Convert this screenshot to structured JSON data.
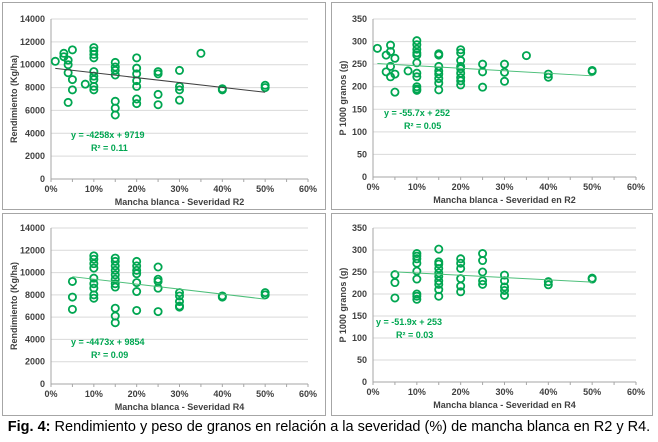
{
  "caption": {
    "prefix": "Fig. 4:",
    "text": " Rendimiento y peso de granos en relación a la severidad (%) de mancha blanca en R2 y R4."
  },
  "colors": {
    "marker": "#00a651",
    "trend_dark": "#404040",
    "trend_green": "#4dbf7a",
    "equation": "#00a651",
    "grid": "#d9d9d9",
    "axis": "#a6a6a6"
  },
  "chart_data": [
    {
      "id": "rend-r2",
      "type": "scatter",
      "title": "",
      "xlabel": "Mancha blanca - Severidad R2",
      "ylabel": "Rendimiento (Kg/ha)",
      "xlim": [
        0,
        0.6
      ],
      "ylim": [
        0,
        14000
      ],
      "xticks": [
        "0%",
        "10%",
        "20%",
        "30%",
        "40%",
        "50%",
        "60%"
      ],
      "yticks": [
        "0",
        "2000",
        "4000",
        "6000",
        "8000",
        "10000",
        "12000",
        "14000"
      ],
      "grid": true,
      "trendline": {
        "slope": -4258,
        "intercept": 9719,
        "x_range": [
          0.01,
          0.5
        ],
        "color": "trend_dark"
      },
      "equation": "y = -4258x + 9719",
      "r2": "R² = 0.11",
      "points": [
        [
          0.01,
          10300
        ],
        [
          0.03,
          11000
        ],
        [
          0.03,
          10700
        ],
        [
          0.04,
          10400
        ],
        [
          0.04,
          10000
        ],
        [
          0.04,
          9300
        ],
        [
          0.04,
          6700
        ],
        [
          0.05,
          11300
        ],
        [
          0.05,
          8700
        ],
        [
          0.05,
          7800
        ],
        [
          0.08,
          8300
        ],
        [
          0.1,
          11500
        ],
        [
          0.1,
          11200
        ],
        [
          0.1,
          10900
        ],
        [
          0.1,
          10600
        ],
        [
          0.1,
          9400
        ],
        [
          0.1,
          9000
        ],
        [
          0.1,
          8700
        ],
        [
          0.1,
          8100
        ],
        [
          0.1,
          7800
        ],
        [
          0.15,
          10200
        ],
        [
          0.15,
          9800
        ],
        [
          0.15,
          9500
        ],
        [
          0.15,
          9100
        ],
        [
          0.15,
          6800
        ],
        [
          0.15,
          6200
        ],
        [
          0.15,
          5600
        ],
        [
          0.2,
          10600
        ],
        [
          0.2,
          9700
        ],
        [
          0.2,
          9200
        ],
        [
          0.2,
          8600
        ],
        [
          0.2,
          8100
        ],
        [
          0.2,
          7000
        ],
        [
          0.2,
          6600
        ],
        [
          0.25,
          9400
        ],
        [
          0.25,
          9200
        ],
        [
          0.25,
          7400
        ],
        [
          0.25,
          6500
        ],
        [
          0.3,
          9500
        ],
        [
          0.3,
          8100
        ],
        [
          0.3,
          7800
        ],
        [
          0.3,
          6900
        ],
        [
          0.35,
          11000
        ],
        [
          0.4,
          7900
        ],
        [
          0.4,
          7800
        ],
        [
          0.5,
          8200
        ],
        [
          0.5,
          8000
        ]
      ]
    },
    {
      "id": "p1000-r2",
      "type": "scatter",
      "title": "",
      "xlabel": "Mancha blanca - Severidad en R2",
      "ylabel": "P 1000 granos (g)",
      "xlim": [
        0,
        0.6
      ],
      "ylim": [
        0,
        350
      ],
      "xticks": [
        "0%",
        "10%",
        "20%",
        "30%",
        "40%",
        "50%",
        "60%"
      ],
      "yticks": [
        "0",
        "50",
        "100",
        "150",
        "200",
        "250",
        "300",
        "350"
      ],
      "grid": true,
      "trendline": {
        "slope": -55.7,
        "intercept": 252,
        "x_range": [
          0.01,
          0.5
        ],
        "color": "trend_green"
      },
      "equation": "y = -55.7x + 252",
      "r2": "R² = 0.05",
      "points": [
        [
          0.01,
          285
        ],
        [
          0.03,
          270
        ],
        [
          0.03,
          233
        ],
        [
          0.04,
          292
        ],
        [
          0.04,
          278
        ],
        [
          0.04,
          245
        ],
        [
          0.04,
          222
        ],
        [
          0.05,
          263
        ],
        [
          0.05,
          228
        ],
        [
          0.05,
          188
        ],
        [
          0.08,
          235
        ],
        [
          0.1,
          302
        ],
        [
          0.1,
          293
        ],
        [
          0.1,
          283
        ],
        [
          0.1,
          275
        ],
        [
          0.1,
          270
        ],
        [
          0.1,
          253
        ],
        [
          0.1,
          230
        ],
        [
          0.1,
          222
        ],
        [
          0.1,
          200
        ],
        [
          0.1,
          195
        ],
        [
          0.1,
          192
        ],
        [
          0.15,
          273
        ],
        [
          0.15,
          270
        ],
        [
          0.15,
          245
        ],
        [
          0.15,
          235
        ],
        [
          0.15,
          228
        ],
        [
          0.15,
          218
        ],
        [
          0.15,
          208
        ],
        [
          0.15,
          193
        ],
        [
          0.2,
          282
        ],
        [
          0.2,
          275
        ],
        [
          0.2,
          258
        ],
        [
          0.2,
          245
        ],
        [
          0.2,
          240
        ],
        [
          0.2,
          230
        ],
        [
          0.2,
          220
        ],
        [
          0.2,
          213
        ],
        [
          0.2,
          204
        ],
        [
          0.25,
          250
        ],
        [
          0.25,
          233
        ],
        [
          0.25,
          199
        ],
        [
          0.3,
          250
        ],
        [
          0.3,
          232
        ],
        [
          0.3,
          212
        ],
        [
          0.35,
          269
        ],
        [
          0.4,
          228
        ],
        [
          0.4,
          221
        ],
        [
          0.5,
          236
        ],
        [
          0.5,
          234
        ]
      ]
    },
    {
      "id": "rend-r4",
      "type": "scatter",
      "title": "",
      "xlabel": "Mancha blanca - Severidad R4",
      "ylabel": "Rendimiento (Kg/ha)",
      "xlim": [
        0,
        0.6
      ],
      "ylim": [
        0,
        14000
      ],
      "xticks": [
        "0%",
        "10%",
        "20%",
        "30%",
        "40%",
        "50%",
        "60%"
      ],
      "yticks": [
        "0",
        "2000",
        "4000",
        "6000",
        "8000",
        "10000",
        "12000",
        "14000"
      ],
      "grid": true,
      "trendline": {
        "slope": -4473,
        "intercept": 9854,
        "x_range": [
          0.05,
          0.5
        ],
        "color": "trend_green"
      },
      "equation": "y = -4473x + 9854",
      "r2": "R² = 0.09",
      "points": [
        [
          0.05,
          9200
        ],
        [
          0.05,
          7800
        ],
        [
          0.05,
          6700
        ],
        [
          0.1,
          11500
        ],
        [
          0.1,
          11200
        ],
        [
          0.1,
          10800
        ],
        [
          0.1,
          10400
        ],
        [
          0.1,
          9500
        ],
        [
          0.1,
          9000
        ],
        [
          0.1,
          8600
        ],
        [
          0.1,
          8000
        ],
        [
          0.1,
          7700
        ],
        [
          0.15,
          11300
        ],
        [
          0.15,
          11000
        ],
        [
          0.15,
          10600
        ],
        [
          0.15,
          10200
        ],
        [
          0.15,
          9800
        ],
        [
          0.15,
          9400
        ],
        [
          0.15,
          9000
        ],
        [
          0.15,
          8700
        ],
        [
          0.15,
          6800
        ],
        [
          0.15,
          6100
        ],
        [
          0.15,
          5500
        ],
        [
          0.2,
          11000
        ],
        [
          0.2,
          10600
        ],
        [
          0.2,
          10200
        ],
        [
          0.2,
          9900
        ],
        [
          0.2,
          9100
        ],
        [
          0.2,
          8300
        ],
        [
          0.2,
          6600
        ],
        [
          0.25,
          10500
        ],
        [
          0.25,
          9400
        ],
        [
          0.25,
          9200
        ],
        [
          0.25,
          8600
        ],
        [
          0.25,
          6500
        ],
        [
          0.3,
          8200
        ],
        [
          0.3,
          7900
        ],
        [
          0.3,
          7400
        ],
        [
          0.3,
          7000
        ],
        [
          0.3,
          6900
        ],
        [
          0.4,
          7900
        ],
        [
          0.4,
          7800
        ],
        [
          0.5,
          8200
        ],
        [
          0.5,
          8000
        ]
      ]
    },
    {
      "id": "p1000-r4",
      "type": "scatter",
      "title": "",
      "xlabel": "Mancha blanca - Severidad en R4",
      "ylabel": "P 1000 granos (g)",
      "xlim": [
        0,
        0.6
      ],
      "ylim": [
        0,
        350
      ],
      "xticks": [
        "0%",
        "10%",
        "20%",
        "30%",
        "40%",
        "50%",
        "60%"
      ],
      "yticks": [
        "0",
        "50",
        "100",
        "150",
        "200",
        "250",
        "300",
        "350"
      ],
      "grid": true,
      "trendline": {
        "slope": -51.9,
        "intercept": 253,
        "x_range": [
          0.05,
          0.5
        ],
        "color": "trend_green"
      },
      "equation": "y = -51.9x + 253",
      "r2": "R² = 0.03",
      "points": [
        [
          0.05,
          244
        ],
        [
          0.05,
          226
        ],
        [
          0.05,
          191
        ],
        [
          0.1,
          292
        ],
        [
          0.1,
          286
        ],
        [
          0.1,
          280
        ],
        [
          0.1,
          270
        ],
        [
          0.1,
          252
        ],
        [
          0.1,
          234
        ],
        [
          0.1,
          200
        ],
        [
          0.1,
          195
        ],
        [
          0.1,
          188
        ],
        [
          0.15,
          302
        ],
        [
          0.15,
          273
        ],
        [
          0.15,
          268
        ],
        [
          0.15,
          258
        ],
        [
          0.15,
          248
        ],
        [
          0.15,
          240
        ],
        [
          0.15,
          230
        ],
        [
          0.15,
          222
        ],
        [
          0.15,
          210
        ],
        [
          0.15,
          195
        ],
        [
          0.2,
          280
        ],
        [
          0.2,
          270
        ],
        [
          0.2,
          258
        ],
        [
          0.2,
          235
        ],
        [
          0.2,
          218
        ],
        [
          0.2,
          205
        ],
        [
          0.25,
          292
        ],
        [
          0.25,
          276
        ],
        [
          0.25,
          250
        ],
        [
          0.25,
          230
        ],
        [
          0.25,
          222
        ],
        [
          0.3,
          243
        ],
        [
          0.3,
          230
        ],
        [
          0.3,
          216
        ],
        [
          0.3,
          208
        ],
        [
          0.3,
          197
        ],
        [
          0.4,
          228
        ],
        [
          0.4,
          221
        ],
        [
          0.5,
          236
        ],
        [
          0.5,
          234
        ]
      ]
    }
  ]
}
